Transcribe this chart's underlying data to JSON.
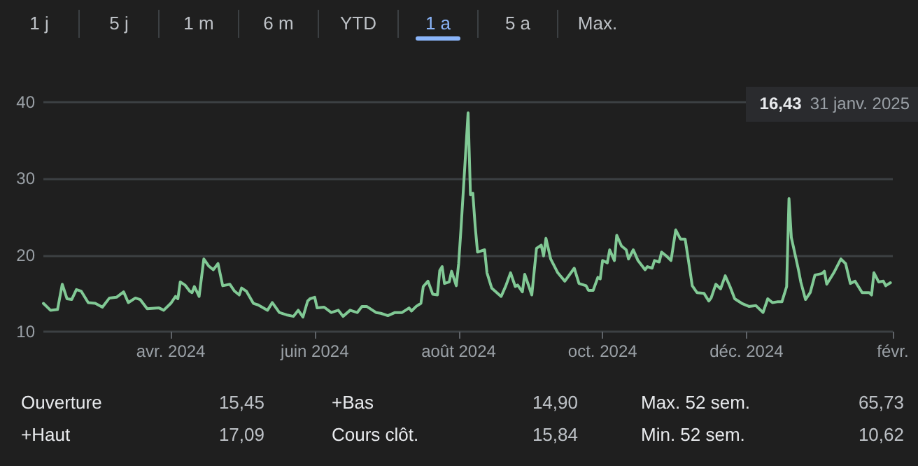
{
  "chart_data": [
    {
      "type": "other",
      "categories": [
        "1 j",
        "5 j",
        "1 m",
        "6 m",
        "YTD",
        "1 a",
        "5 a",
        "Max."
      ],
      "colors": [
        "#bdc1c6",
        "#bdc1c6",
        "#bdc1c6",
        "#bdc1c6",
        "#bdc1c6",
        "#8ab4f8",
        "#bdc1c6",
        "#bdc1c6"
      ]
    },
    {
      "type": "line",
      "color": "#81c995",
      "grid": "y",
      "x": [
        "2024-02-07",
        "2024-02-10",
        "2024-02-13",
        "2024-02-15",
        "2024-02-17",
        "2024-02-19",
        "2024-02-21",
        "2024-02-23",
        "2024-02-26",
        "2024-02-29",
        "2024-03-03",
        "2024-03-06",
        "2024-03-09",
        "2024-03-12",
        "2024-03-14",
        "2024-03-17",
        "2024-03-19",
        "2024-03-22",
        "2024-03-27",
        "2024-03-29",
        "2024-04-01",
        "2024-04-03",
        "2024-04-04",
        "2024-04-05",
        "2024-04-07",
        "2024-04-09",
        "2024-04-10",
        "2024-04-11",
        "2024-04-13",
        "2024-04-15",
        "2024-04-17",
        "2024-04-19",
        "2024-04-21",
        "2024-04-23",
        "2024-04-26",
        "2024-04-28",
        "2024-04-30",
        "2024-05-01",
        "2024-05-03",
        "2024-05-06",
        "2024-05-08",
        "2024-05-12",
        "2024-05-14",
        "2024-05-17",
        "2024-05-20",
        "2024-05-23",
        "2024-05-25",
        "2024-05-27",
        "2024-05-29",
        "2024-05-30",
        "2024-06-01",
        "2024-06-02",
        "2024-06-05",
        "2024-06-08",
        "2024-06-11",
        "2024-06-13",
        "2024-06-16",
        "2024-06-19",
        "2024-06-21",
        "2024-06-23",
        "2024-06-27",
        "2024-06-29",
        "2024-07-02",
        "2024-07-05",
        "2024-07-08",
        "2024-07-11",
        "2024-07-12",
        "2024-07-14",
        "2024-07-16",
        "2024-07-17",
        "2024-07-19",
        "2024-07-21",
        "2024-07-23",
        "2024-07-24",
        "2024-07-25",
        "2024-07-26",
        "2024-07-28",
        "2024-07-29",
        "2024-07-31",
        "2024-08-01",
        "2024-08-02",
        "2024-08-05",
        "2024-08-06",
        "2024-08-07",
        "2024-08-08",
        "2024-08-09",
        "2024-08-12",
        "2024-08-13",
        "2024-08-15",
        "2024-08-19",
        "2024-08-21",
        "2024-08-23",
        "2024-08-25",
        "2024-08-26",
        "2024-08-28",
        "2024-08-29",
        "2024-09-01",
        "2024-09-03",
        "2024-09-05",
        "2024-09-06",
        "2024-09-07",
        "2024-09-09",
        "2024-09-12",
        "2024-09-15",
        "2024-09-19",
        "2024-09-21",
        "2024-09-24",
        "2024-09-25",
        "2024-09-27",
        "2024-09-29",
        "2024-09-30",
        "2024-10-01",
        "2024-10-03",
        "2024-10-04",
        "2024-10-06",
        "2024-10-07",
        "2024-10-09",
        "2024-10-11",
        "2024-10-12",
        "2024-10-14",
        "2024-10-16",
        "2024-10-19",
        "2024-10-20",
        "2024-10-22",
        "2024-10-23",
        "2024-10-25",
        "2024-10-26",
        "2024-10-28",
        "2024-10-30",
        "2024-11-01",
        "2024-11-03",
        "2024-11-05",
        "2024-11-06",
        "2024-11-08",
        "2024-11-10",
        "2024-11-13",
        "2024-11-15",
        "2024-11-16",
        "2024-11-18",
        "2024-11-20",
        "2024-11-22",
        "2024-11-24",
        "2024-11-26",
        "2024-11-29",
        "2024-12-02",
        "2024-12-05",
        "2024-12-08",
        "2024-12-10",
        "2024-12-12",
        "2024-12-14",
        "2024-12-16",
        "2024-12-18",
        "2024-12-19",
        "2024-12-20",
        "2024-12-23",
        "2024-12-24",
        "2024-12-26",
        "2024-12-28",
        "2024-12-30",
        "2025-01-02",
        "2025-01-03",
        "2025-01-04",
        "2025-01-07",
        "2025-01-10",
        "2025-01-12",
        "2025-01-14",
        "2025-01-16",
        "2025-01-19",
        "2025-01-22",
        "2025-01-23",
        "2025-01-24",
        "2025-01-26",
        "2025-01-28",
        "2025-01-29",
        "2025-01-31"
      ],
      "values": [
        13.7,
        12.8,
        12.9,
        16.2,
        14.3,
        14.2,
        15.5,
        15.3,
        13.8,
        13.7,
        13.2,
        14.4,
        14.5,
        15.2,
        13.8,
        14.4,
        14.2,
        13.0,
        13.1,
        12.8,
        13.7,
        14.6,
        14.3,
        16.5,
        16.1,
        15.3,
        15.1,
        15.9,
        14.6,
        19.5,
        18.6,
        18.1,
        18.9,
        16.0,
        16.2,
        15.3,
        14.8,
        15.7,
        15.3,
        13.7,
        13.5,
        12.8,
        13.8,
        12.5,
        12.2,
        12.0,
        12.8,
        11.9,
        14.0,
        14.3,
        14.5,
        13.1,
        13.2,
        12.5,
        12.8,
        12.0,
        12.8,
        12.5,
        13.3,
        13.3,
        12.5,
        12.4,
        12.1,
        12.5,
        12.5,
        13.1,
        12.7,
        13.3,
        13.7,
        15.9,
        16.6,
        14.9,
        14.8,
        18.0,
        18.5,
        16.3,
        16.5,
        17.9,
        16.0,
        18.9,
        23.5,
        38.6,
        27.9,
        28.1,
        23.8,
        20.4,
        20.7,
        17.7,
        15.7,
        14.6,
        16.0,
        17.7,
        15.9,
        16.1,
        15.2,
        17.5,
        14.8,
        20.9,
        21.3,
        19.9,
        22.2,
        19.5,
        17.7,
        16.6,
        18.3,
        16.3,
        16.0,
        15.4,
        15.4,
        17.1,
        16.9,
        19.3,
        19.0,
        20.7,
        19.3,
        22.6,
        21.2,
        20.7,
        19.5,
        20.7,
        19.3,
        18.1,
        18.5,
        18.3,
        19.3,
        19.1,
        20.4,
        19.9,
        19.3,
        23.3,
        22.1,
        22.1,
        20.1,
        16.0,
        15.1,
        15.0,
        14.0,
        14.4,
        16.2,
        15.6,
        17.3,
        15.9,
        14.3,
        13.7,
        13.3,
        13.4,
        12.5,
        14.3,
        13.8,
        13.9,
        13.9,
        15.9,
        27.4,
        22.3,
        18.1,
        16.5,
        14.2,
        15.1,
        17.4,
        17.6,
        17.9,
        16.2,
        17.7,
        19.5,
        18.9,
        16.3,
        16.6,
        15.1,
        15.1,
        14.8,
        17.7,
        16.5,
        16.6,
        16.0,
        16.4
      ],
      "xlim": [
        "2024-02-07",
        "2025-02-01"
      ],
      "xticks": [
        {
          "value": "2024-04-01",
          "label": "avr. 2024"
        },
        {
          "value": "2024-06-01",
          "label": "juin 2024"
        },
        {
          "value": "2024-08-01",
          "label": "août 2024"
        },
        {
          "value": "2024-10-01",
          "label": "oct. 2024"
        },
        {
          "value": "2024-12-01",
          "label": "déc. 2024"
        },
        {
          "value": "2025-02-01",
          "label": "févr."
        }
      ],
      "ylim": [
        10,
        40
      ],
      "yticks": [
        10,
        20,
        30,
        40
      ],
      "annotations": [
        "16,43 31 janv. 2025"
      ]
    },
    {
      "type": "other",
      "annotations": [
        "Ouverture",
        "15,45",
        "+Bas",
        "14,90",
        "Max. 52 sem.",
        "65,73",
        "+Haut",
        "17,09",
        "Cours clôt.",
        "15,84",
        "Min. 52 sem.",
        "10,62"
      ]
    }
  ]
}
